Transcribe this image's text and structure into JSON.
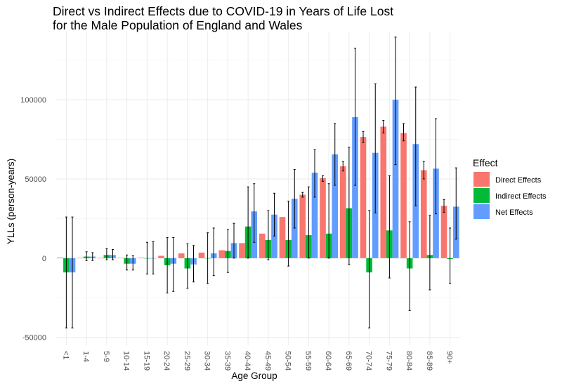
{
  "chart_data": {
    "type": "bar",
    "title_line1": "Direct vs Indirect Effects due to COVID-19 in Years of Life Lost",
    "title_line2": "for the Male Population of England and Wales",
    "xlabel": "Age Group",
    "ylabel": "YLLs (person-years)",
    "ylim": [
      -55000,
      143000
    ],
    "yticks": [
      -50000,
      0,
      50000,
      100000
    ],
    "grid": true,
    "legend": {
      "title": "Effect",
      "position": "right"
    },
    "categories": [
      "<1",
      "1-4",
      "5-9",
      "10-14",
      "15-19",
      "20-24",
      "25-29",
      "30-34",
      "35-39",
      "40-44",
      "45-49",
      "50-54",
      "55-59",
      "60-64",
      "65-69",
      "70-74",
      "75-79",
      "80-84",
      "85-89",
      "90+"
    ],
    "series": [
      {
        "name": "Direct Effects",
        "color": "#F8766D",
        "values": [
          400,
          200,
          100,
          200,
          300,
          1500,
          3000,
          3500,
          5000,
          9500,
          15500,
          26000,
          40000,
          50500,
          58000,
          76500,
          83000,
          79000,
          55500,
          33000
        ],
        "error_low": [
          0,
          0,
          0,
          0,
          0,
          0,
          0,
          0,
          0,
          0,
          0,
          0,
          38500,
          48500,
          55000,
          73000,
          79000,
          74000,
          50000,
          29000
        ],
        "error_high": [
          0,
          0,
          0,
          0,
          0,
          0,
          0,
          0,
          0,
          0,
          0,
          0,
          41500,
          52000,
          61000,
          80000,
          87000,
          85000,
          61000,
          37000
        ]
      },
      {
        "name": "Indirect Effects",
        "color": "#00BA38",
        "values": [
          -9000,
          1000,
          2000,
          -3500,
          0,
          -4500,
          -6500,
          0,
          4500,
          20000,
          11500,
          11500,
          14500,
          15500,
          31500,
          -9000,
          17500,
          -6500,
          2000,
          -500
        ],
        "error_low": [
          -44000,
          -1500,
          -1000,
          -7500,
          -10000,
          -22000,
          -19000,
          -16000,
          -9000,
          0,
          -1000,
          -5000,
          0,
          0,
          -4000,
          -44000,
          -12500,
          -33000,
          -20000,
          -16000
        ],
        "error_high": [
          26000,
          4000,
          6000,
          2000,
          10000,
          13000,
          9000,
          16000,
          18000,
          45000,
          30000,
          36000,
          45000,
          47000,
          70000,
          30000,
          52000,
          23000,
          27000,
          19000
        ]
      },
      {
        "name": "Net Effects",
        "color": "#619CFF",
        "values": [
          -9000,
          1000,
          2000,
          -3500,
          0,
          -3500,
          -4000,
          3000,
          9500,
          29500,
          27500,
          37500,
          54000,
          65500,
          89000,
          66500,
          100000,
          72000,
          56500,
          32500
        ],
        "error_low": [
          -44000,
          -1500,
          -1000,
          -7500,
          -10000,
          -21000,
          -15000,
          -11000,
          0,
          10000,
          14000,
          19000,
          38500,
          46000,
          46000,
          28500,
          59000,
          33000,
          28000,
          12000
        ],
        "error_high": [
          26000,
          3500,
          5500,
          1500,
          10500,
          13000,
          8000,
          19000,
          22000,
          47000,
          41000,
          56000,
          68500,
          85000,
          132500,
          110000,
          139500,
          108000,
          88000,
          57000
        ]
      }
    ]
  }
}
